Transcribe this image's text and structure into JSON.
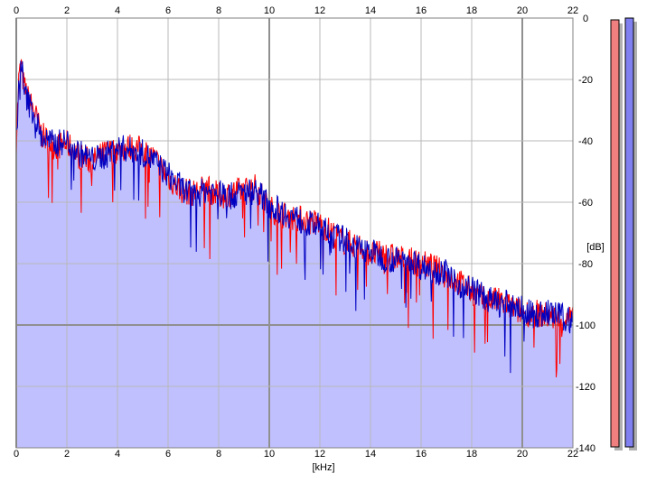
{
  "chart_data": {
    "type": "line",
    "xlabel": "[kHz]",
    "ylabel": "[dB]",
    "xlim": [
      0,
      22
    ],
    "ylim": [
      -140,
      0
    ],
    "x_ticks": [
      "0",
      "2",
      "4",
      "6",
      "8",
      "10",
      "12",
      "14",
      "16",
      "18",
      "20",
      "22"
    ],
    "y_ticks": [
      "0",
      "-20",
      "-40",
      "-60",
      "-80",
      "-100",
      "-120",
      "-140"
    ],
    "grid": true,
    "fill_color": "#c0c0ff",
    "series": [
      {
        "color": "#ff0000",
        "x": [
          0,
          0.1,
          0.2,
          0.3,
          0.5,
          0.7,
          1,
          1.5,
          2,
          2.5,
          3,
          3.5,
          4,
          4.5,
          5,
          5.5,
          6,
          6.5,
          7,
          7.5,
          8,
          8.5,
          9,
          9.5,
          10,
          10.5,
          11,
          11.5,
          12,
          12.5,
          13,
          13.5,
          14,
          14.5,
          15,
          15.5,
          16,
          16.5,
          17,
          17.5,
          18,
          18.5,
          19,
          19.5,
          20,
          20.5,
          21,
          21.5,
          22
        ],
        "y": [
          -40,
          -20,
          -15,
          -22,
          -27,
          -30,
          -38,
          -42,
          -41,
          -45,
          -47,
          -44,
          -43,
          -42,
          -43,
          -46,
          -52,
          -56,
          -57,
          -55,
          -58,
          -57,
          -56,
          -55,
          -62,
          -64,
          -65,
          -66,
          -67,
          -70,
          -73,
          -74,
          -77,
          -77,
          -78,
          -79,
          -80,
          -81,
          -84,
          -86,
          -89,
          -92,
          -92,
          -94,
          -96,
          -96,
          -97,
          -98,
          -98
        ]
      },
      {
        "color": "#0000c0",
        "x": [
          0,
          0.1,
          0.2,
          0.3,
          0.5,
          0.7,
          1,
          1.5,
          2,
          2.5,
          3,
          3.5,
          4,
          4.5,
          5,
          5.5,
          6,
          6.5,
          7,
          7.5,
          8,
          8.5,
          9,
          9.5,
          10,
          10.5,
          11,
          11.5,
          12,
          12.5,
          13,
          13.5,
          14,
          14.5,
          15,
          15.5,
          16,
          16.5,
          17,
          17.5,
          18,
          18.5,
          19,
          19.5,
          20,
          20.5,
          21,
          21.5,
          22
        ],
        "y": [
          -40,
          -22,
          -13,
          -24,
          -28,
          -31,
          -39,
          -41,
          -40,
          -44,
          -46,
          -45,
          -42,
          -43,
          -44,
          -47,
          -51,
          -55,
          -58,
          -56,
          -57,
          -58,
          -57,
          -56,
          -61,
          -63,
          -65,
          -67,
          -68,
          -71,
          -72,
          -75,
          -76,
          -78,
          -79,
          -78,
          -81,
          -82,
          -83,
          -87,
          -88,
          -91,
          -93,
          -93,
          -95,
          -97,
          -96,
          -97,
          -99
        ]
      }
    ]
  },
  "meters": {
    "left_color": "#f08080",
    "right_color": "#8080f0"
  }
}
